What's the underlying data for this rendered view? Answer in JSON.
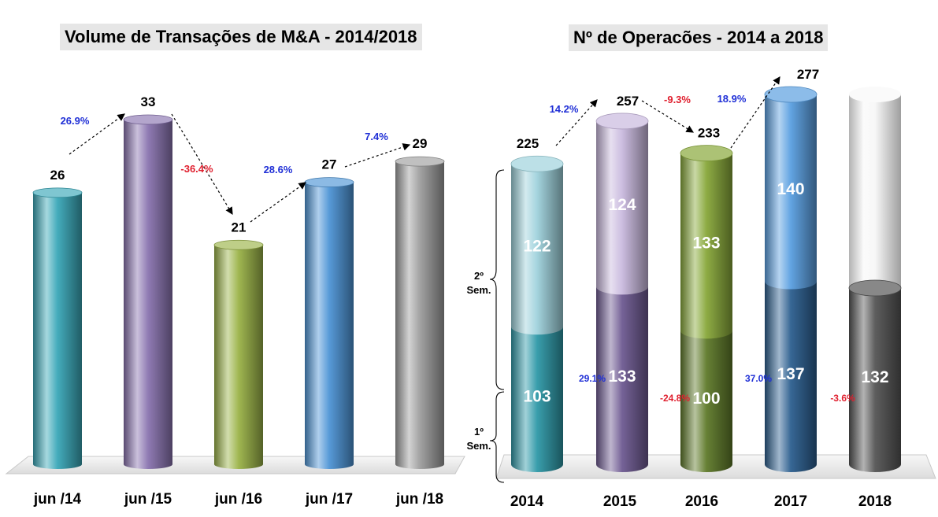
{
  "chart_data": [
    {
      "type": "bar",
      "title": "Volume de Transações de M&A - 2014/2018",
      "categories": [
        "jun /14",
        "jun /15",
        "jun /16",
        "jun /17",
        "jun /18"
      ],
      "values": [
        26,
        33,
        21,
        27,
        29
      ],
      "changes": [
        "26.9%",
        "-36.4%",
        "28.6%",
        "7.4%"
      ],
      "colors": [
        "#3aa8b8",
        "#8a74b0",
        "#9bb348",
        "#4e95d6",
        "#9e9e9e"
      ],
      "xlabel": "",
      "ylabel": ""
    },
    {
      "type": "stacked-bar",
      "title": "Nº de Operacões  - 2014 a 2018",
      "categories": [
        "2014",
        "2015",
        "2016",
        "2017",
        "2018"
      ],
      "series": [
        {
          "name": "1º Sem.",
          "values": [
            103,
            133,
            100,
            137,
            132
          ]
        },
        {
          "name": "2º Sem.",
          "values": [
            122,
            124,
            133,
            140,
            null
          ]
        }
      ],
      "totals": [
        225,
        257,
        233,
        277,
        null
      ],
      "total_changes": [
        "14.2%",
        "-9.3%",
        "18.9%"
      ],
      "sem1_changes": [
        "29.1%",
        "-24.8%",
        "37.0%",
        "-3.6%"
      ],
      "bracket_labels": {
        "top": "2º Sem.",
        "bottom": "1º Sem."
      },
      "sem1_colors": [
        "#2f99a8",
        "#6e5a92",
        "#5f7a2a",
        "#2c5f8f",
        "#555555"
      ],
      "sem2_colors": [
        "#9fd2dc",
        "#c9b9de",
        "#88a83a",
        "#5a9fe0",
        "#f4f4f4"
      ]
    }
  ],
  "colors": {
    "positive": "#1f2fd6",
    "negative": "#e0202f",
    "text": "#000000"
  }
}
